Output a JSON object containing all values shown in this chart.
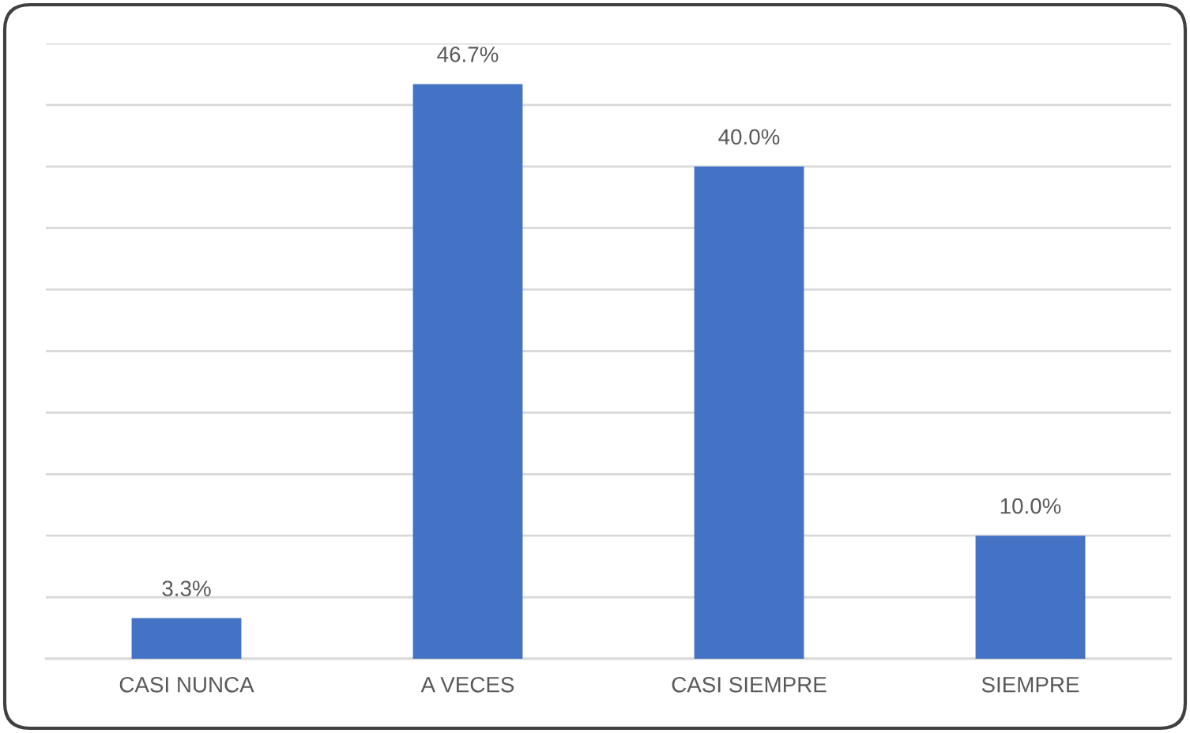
{
  "chart_data": {
    "type": "bar",
    "categories": [
      "CASI NUNCA",
      "A VECES",
      "CASI SIEMPRE",
      "SIEMPRE"
    ],
    "values": [
      3.3,
      46.7,
      40.0,
      10.0
    ],
    "value_labels": [
      "3.3%",
      "46.7%",
      "40.0%",
      "10.0%"
    ],
    "color": "#4472c4",
    "ylim": [
      0,
      50
    ],
    "yticks": [
      {
        "value": 0,
        "label": null
      },
      {
        "value": 5,
        "label": null
      },
      {
        "value": 10,
        "label": null
      },
      {
        "value": 15,
        "label": null
      },
      {
        "value": 20,
        "label": null
      },
      {
        "value": 25,
        "label": null
      },
      {
        "value": 30,
        "label": null
      },
      {
        "value": 35,
        "label": null
      },
      {
        "value": 40,
        "label": null
      },
      {
        "value": 45,
        "label": null
      },
      {
        "value": 50,
        "label": null
      }
    ],
    "grid": "y",
    "tick_labels": "x"
  }
}
